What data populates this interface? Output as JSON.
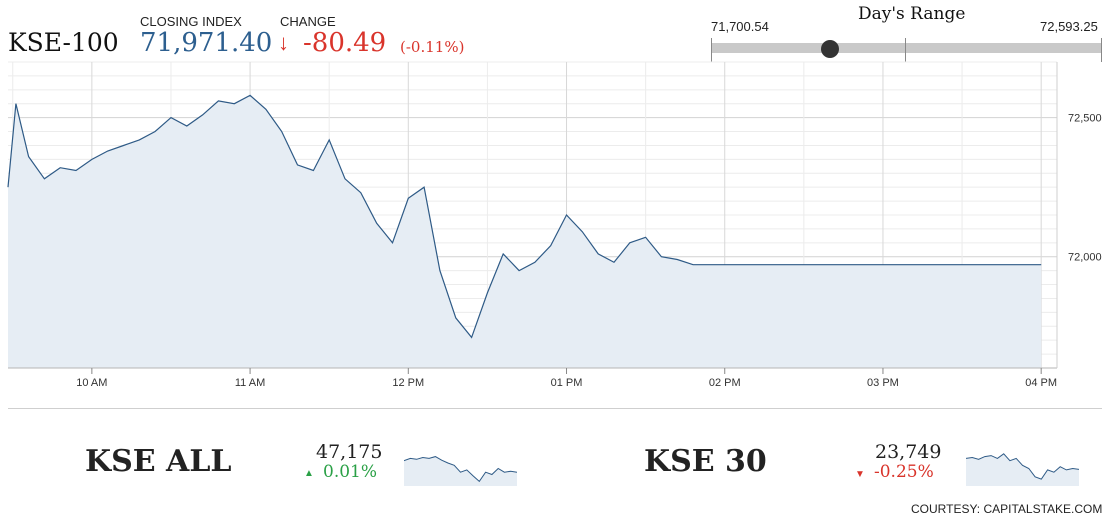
{
  "header": {
    "index_name": "KSE-100",
    "closing_label": "CLOSING INDEX",
    "closing_value": "71,971.40",
    "change_label": "CHANGE",
    "change_arrow": "↓",
    "change_value": "-80.49",
    "change_pct": "(-0.11%)"
  },
  "days_range": {
    "title": "Day's Range",
    "low": "71,700.54",
    "high": "72,593.25",
    "low_value": 71700.54,
    "high_value": 72593.25,
    "current_value": 71971.4
  },
  "chart_data": {
    "type": "area",
    "x_ticks": [
      "10 AM",
      "11 AM",
      "12 PM",
      "01 PM",
      "02 PM",
      "03 PM",
      "04 PM"
    ],
    "y_ticks": [
      "72,500",
      "72,000"
    ],
    "ylim": [
      71600,
      72700
    ],
    "grid": true,
    "series_color": "#2e5a86",
    "series": [
      {
        "x": [
          9.47,
          9.52,
          9.6,
          9.7,
          9.8,
          9.9,
          10.0,
          10.1,
          10.2,
          10.3,
          10.4,
          10.5,
          10.6,
          10.7,
          10.8,
          10.9,
          11.0,
          11.1,
          11.2,
          11.3,
          11.4,
          11.5,
          11.6,
          11.7,
          11.8,
          11.9,
          12.0,
          12.1,
          12.2,
          12.3,
          12.4,
          12.5,
          12.6,
          12.7,
          12.8,
          12.9,
          13.0,
          13.1,
          13.2,
          13.3,
          13.4,
          13.5,
          13.6,
          13.7,
          13.8,
          13.9,
          14.0,
          14.1,
          14.2,
          14.3,
          14.4,
          14.5,
          14.6,
          14.7,
          14.8,
          14.9,
          15.0,
          15.1,
          15.2,
          15.3,
          15.4,
          15.5,
          15.6,
          15.7,
          15.8,
          15.9,
          16.0
        ],
        "values": [
          72250,
          72550,
          72360,
          72280,
          72320,
          72310,
          72350,
          72380,
          72400,
          72420,
          72450,
          72500,
          72470,
          72510,
          72560,
          72550,
          72580,
          72530,
          72450,
          72330,
          72310,
          72420,
          72280,
          72230,
          72120,
          72050,
          72210,
          72250,
          71950,
          71780,
          71710,
          71870,
          72010,
          71950,
          71980,
          72040,
          72150,
          72090,
          72010,
          71980,
          72050,
          72070,
          72000,
          71990,
          71971.4,
          71971.4,
          71971.4,
          71971.4,
          71971.4,
          71971.4,
          71971.4,
          71971.4,
          71971.4,
          71971.4,
          71971.4,
          71971.4,
          71971.4,
          71971.4,
          71971.4,
          71971.4,
          71971.4,
          71971.4,
          71971.4,
          71971.4,
          71971.4,
          71971.4,
          71971.4
        ]
      }
    ]
  },
  "indices": [
    {
      "name": "KSE ALL",
      "value": "47,175",
      "arrow": "▲",
      "pct": "0.01%",
      "spark": [
        0.55,
        0.6,
        0.58,
        0.62,
        0.6,
        0.64,
        0.56,
        0.5,
        0.45,
        0.3,
        0.35,
        0.22,
        0.1,
        0.3,
        0.25,
        0.38,
        0.3,
        0.32,
        0.3
      ]
    },
    {
      "name": "KSE 30",
      "value": "23,749",
      "arrow": "▼",
      "pct": "-0.25%",
      "spark": [
        0.6,
        0.62,
        0.58,
        0.64,
        0.66,
        0.6,
        0.7,
        0.55,
        0.6,
        0.45,
        0.38,
        0.2,
        0.15,
        0.35,
        0.3,
        0.42,
        0.35,
        0.38,
        0.36
      ]
    }
  ],
  "footer": {
    "courtesy": "COURTESY: CAPITALSTAKE.COM"
  }
}
